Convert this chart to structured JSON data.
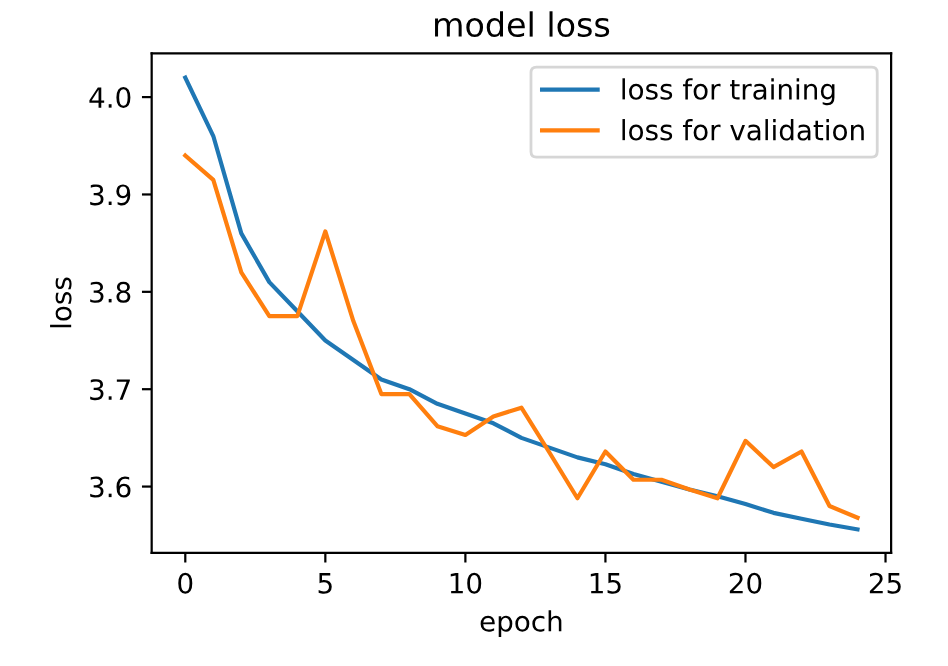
{
  "chart_data": {
    "type": "line",
    "title": "model loss",
    "xlabel": "epoch",
    "ylabel": "loss",
    "x": [
      0,
      1,
      2,
      3,
      4,
      5,
      6,
      7,
      8,
      9,
      10,
      11,
      12,
      13,
      14,
      15,
      16,
      17,
      18,
      19,
      20,
      21,
      22,
      23,
      24
    ],
    "series": [
      {
        "name": "loss for training",
        "color": "#1f77b4",
        "values": [
          4.02,
          3.96,
          3.86,
          3.81,
          3.78,
          3.75,
          3.73,
          3.71,
          3.7,
          3.685,
          3.675,
          3.665,
          3.65,
          3.64,
          3.63,
          3.623,
          3.613,
          3.605,
          3.597,
          3.59,
          3.582,
          3.573,
          3.567,
          3.561,
          3.556
        ]
      },
      {
        "name": "loss for validation",
        "color": "#ff7f0e",
        "values": [
          3.94,
          3.915,
          3.82,
          3.775,
          3.775,
          3.862,
          3.77,
          3.695,
          3.695,
          3.662,
          3.653,
          3.672,
          3.681,
          3.635,
          3.588,
          3.636,
          3.607,
          3.607,
          3.597,
          3.588,
          3.647,
          3.62,
          3.636,
          3.58,
          3.568
        ]
      }
    ],
    "xlim": [
      -1.2,
      25.2
    ],
    "ylim": [
      3.532,
      4.045
    ],
    "xticks": [
      0,
      5,
      10,
      15,
      20,
      25
    ],
    "yticks": [
      3.6,
      3.7,
      3.8,
      3.9,
      {
        "value": 4.0,
        "label": "4.0"
      }
    ],
    "legend": "top right",
    "grid": false
  }
}
